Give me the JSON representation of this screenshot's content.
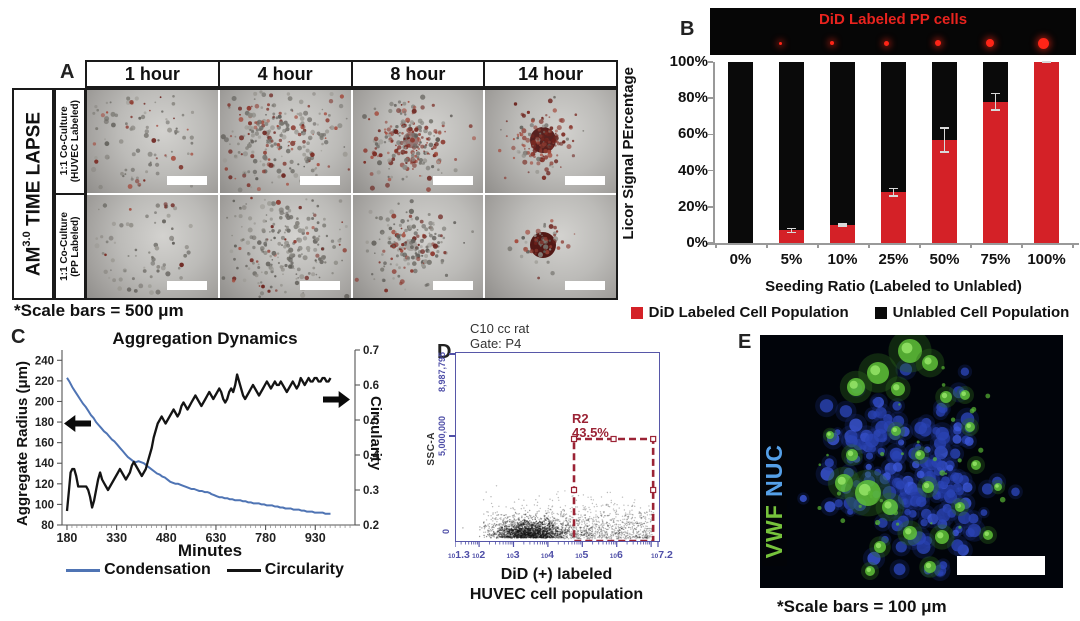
{
  "panel_a": {
    "label": "A",
    "group_label_prefix": "AM",
    "group_label_sup": "3.0",
    "group_label_suffix": " TIME LAPSE",
    "columns": [
      "1 hour",
      "4 hour",
      "8 hour",
      "14 hour"
    ],
    "rows": [
      {
        "line1": "1:1 Co-Culture",
        "line2": "(HUVEC Labeled)"
      },
      {
        "line1": "1:1 Co-Culture",
        "line2": "(PP Labeled)"
      }
    ],
    "scale_note": "*Scale bars = 500 μm"
  },
  "panel_b": {
    "label": "B",
    "strip_title": "DiD Labeled PP cells",
    "chart_data": {
      "type": "stacked-bar",
      "categories": [
        "0%",
        "5%",
        "10%",
        "25%",
        "50%",
        "75%",
        "100%"
      ],
      "series": [
        {
          "name": "DiD Labeled Cell Population",
          "color": "#d42127",
          "values": [
            0,
            7,
            10,
            28,
            57,
            78,
            100
          ]
        },
        {
          "name": "Unlabled Cell Population",
          "color": "#0a0a0a",
          "values": [
            100,
            93,
            90,
            72,
            43,
            22,
            0
          ]
        }
      ],
      "error_bars": [
        0,
        1.5,
        1,
        2.5,
        7,
        5,
        0.8
      ],
      "ylabel": "Licor Signal PErcentage",
      "xlabel": "Seeding Ratio (Labeled to Unlabled)",
      "yticks": [
        "0%",
        "20%",
        "40%",
        "60%",
        "80%",
        "100%"
      ],
      "ylim": [
        0,
        100
      ],
      "legend_position": "bottom"
    }
  },
  "panel_c": {
    "label": "C",
    "chart_data": {
      "type": "line",
      "title": "Aggregation Dynamics",
      "xlabel": "Minutes",
      "ylabel_left": "Aggregate Radius (μm)",
      "ylabel_right": "Circularity",
      "xticks": [
        180,
        330,
        480,
        630,
        780,
        930
      ],
      "xlim": [
        165,
        1050
      ],
      "yticks_left": [
        80,
        100,
        120,
        140,
        160,
        180,
        200,
        220,
        240
      ],
      "ylim_left": [
        80,
        250
      ],
      "yticks_right": [
        0.2,
        0.3,
        0.4,
        0.5,
        0.6,
        0.7
      ],
      "ylim_right": [
        0.2,
        0.7
      ],
      "series": [
        {
          "name": "Condensation",
          "color": "#4f74b4",
          "axis": "left",
          "points": [
            [
              180,
              223
            ],
            [
              188,
              219
            ],
            [
              196,
              214
            ],
            [
              204,
              210
            ],
            [
              212,
              206
            ],
            [
              220,
              202
            ],
            [
              228,
              198
            ],
            [
              236,
              195
            ],
            [
              244,
              191
            ],
            [
              252,
              187
            ],
            [
              260,
              184
            ],
            [
              268,
              180
            ],
            [
              276,
              177
            ],
            [
              284,
              174
            ],
            [
              292,
              171
            ],
            [
              300,
              169
            ],
            [
              308,
              166
            ],
            [
              316,
              163
            ],
            [
              324,
              161
            ],
            [
              332,
              158
            ],
            [
              340,
              155
            ],
            [
              348,
              152
            ],
            [
              356,
              149
            ],
            [
              364,
              146
            ],
            [
              372,
              144
            ],
            [
              380,
              142
            ],
            [
              388,
              141
            ],
            [
              396,
              142
            ],
            [
              404,
              141
            ],
            [
              412,
              140
            ],
            [
              420,
              138
            ],
            [
              428,
              136
            ],
            [
              436,
              134
            ],
            [
              444,
              132
            ],
            [
              452,
              130
            ],
            [
              460,
              129
            ],
            [
              468,
              127
            ],
            [
              476,
              126
            ],
            [
              484,
              124
            ],
            [
              492,
              122
            ],
            [
              500,
              121
            ],
            [
              508,
              120
            ],
            [
              516,
              120
            ],
            [
              524,
              119
            ],
            [
              532,
              118
            ],
            [
              540,
              117
            ],
            [
              548,
              116
            ],
            [
              556,
              115
            ],
            [
              564,
              115
            ],
            [
              572,
              114
            ],
            [
              580,
              113
            ],
            [
              588,
              113
            ],
            [
              596,
              112
            ],
            [
              604,
              112
            ],
            [
              612,
              111
            ],
            [
              616,
              110
            ],
            [
              624,
              109
            ],
            [
              632,
              108
            ],
            [
              640,
              107
            ],
            [
              648,
              107
            ],
            [
              656,
              106
            ],
            [
              664,
              106
            ],
            [
              672,
              105
            ],
            [
              680,
              105
            ],
            [
              688,
              104
            ],
            [
              696,
              104
            ],
            [
              704,
              104
            ],
            [
              712,
              103
            ],
            [
              720,
              103
            ],
            [
              728,
              102
            ],
            [
              736,
              102
            ],
            [
              744,
              101
            ],
            [
              752,
              101
            ],
            [
              760,
              101
            ],
            [
              768,
              100
            ],
            [
              776,
              100
            ],
            [
              784,
              99
            ],
            [
              792,
              99
            ],
            [
              800,
              99
            ],
            [
              808,
              98
            ],
            [
              816,
              98
            ],
            [
              824,
              97
            ],
            [
              832,
              97
            ],
            [
              840,
              96
            ],
            [
              848,
              96
            ],
            [
              856,
              96
            ],
            [
              864,
              95
            ],
            [
              872,
              95
            ],
            [
              880,
              95
            ],
            [
              888,
              94
            ],
            [
              896,
              94
            ],
            [
              904,
              93
            ],
            [
              912,
              93
            ],
            [
              920,
              93
            ],
            [
              928,
              92
            ],
            [
              936,
              92
            ],
            [
              944,
              92
            ],
            [
              952,
              92
            ],
            [
              960,
              91
            ],
            [
              968,
              91
            ],
            [
              976,
              91
            ]
          ]
        },
        {
          "name": "Circularity",
          "color": "#141414",
          "axis": "right",
          "points": [
            [
              180,
              0.24
            ],
            [
              186,
              0.3
            ],
            [
              191,
              0.35
            ],
            [
              196,
              0.36
            ],
            [
              202,
              0.36
            ],
            [
              208,
              0.34
            ],
            [
              214,
              0.31
            ],
            [
              220,
              0.31
            ],
            [
              226,
              0.31
            ],
            [
              232,
              0.31
            ],
            [
              238,
              0.31
            ],
            [
              244,
              0.3
            ],
            [
              250,
              0.28
            ],
            [
              256,
              0.25
            ],
            [
              262,
              0.27
            ],
            [
              268,
              0.3
            ],
            [
              274,
              0.33
            ],
            [
              280,
              0.35
            ],
            [
              286,
              0.33
            ],
            [
              292,
              0.32
            ],
            [
              298,
              0.31
            ],
            [
              304,
              0.3
            ],
            [
              310,
              0.31
            ],
            [
              316,
              0.32
            ],
            [
              322,
              0.33
            ],
            [
              328,
              0.34
            ],
            [
              334,
              0.35
            ],
            [
              340,
              0.36
            ],
            [
              346,
              0.35
            ],
            [
              352,
              0.34
            ],
            [
              358,
              0.33
            ],
            [
              364,
              0.34
            ],
            [
              370,
              0.35
            ],
            [
              376,
              0.37
            ],
            [
              382,
              0.38
            ],
            [
              388,
              0.37
            ],
            [
              394,
              0.36
            ],
            [
              400,
              0.35
            ],
            [
              406,
              0.34
            ],
            [
              412,
              0.35
            ],
            [
              418,
              0.36
            ],
            [
              424,
              0.38
            ],
            [
              430,
              0.4
            ],
            [
              436,
              0.42
            ],
            [
              442,
              0.45
            ],
            [
              448,
              0.47
            ],
            [
              454,
              0.49
            ],
            [
              460,
              0.5
            ],
            [
              466,
              0.51
            ],
            [
              472,
              0.5
            ],
            [
              478,
              0.49
            ],
            [
              484,
              0.5
            ],
            [
              490,
              0.51
            ],
            [
              496,
              0.52
            ],
            [
              502,
              0.53
            ],
            [
              508,
              0.52
            ],
            [
              514,
              0.51
            ],
            [
              520,
              0.52
            ],
            [
              526,
              0.54
            ],
            [
              532,
              0.55
            ],
            [
              538,
              0.54
            ],
            [
              544,
              0.53
            ],
            [
              550,
              0.54
            ],
            [
              556,
              0.55
            ],
            [
              562,
              0.56
            ],
            [
              568,
              0.57
            ],
            [
              574,
              0.56
            ],
            [
              580,
              0.55
            ],
            [
              586,
              0.54
            ],
            [
              592,
              0.55
            ],
            [
              598,
              0.56
            ],
            [
              604,
              0.57
            ],
            [
              610,
              0.58
            ],
            [
              616,
              0.57
            ],
            [
              622,
              0.56
            ],
            [
              628,
              0.57
            ],
            [
              634,
              0.58
            ],
            [
              640,
              0.59
            ],
            [
              646,
              0.58
            ],
            [
              652,
              0.56
            ],
            [
              658,
              0.55
            ],
            [
              664,
              0.56
            ],
            [
              670,
              0.58
            ],
            [
              676,
              0.59
            ],
            [
              682,
              0.58
            ],
            [
              688,
              0.6
            ],
            [
              694,
              0.63
            ],
            [
              700,
              0.61
            ],
            [
              706,
              0.59
            ],
            [
              712,
              0.57
            ],
            [
              718,
              0.56
            ],
            [
              724,
              0.57
            ],
            [
              730,
              0.58
            ],
            [
              736,
              0.59
            ],
            [
              742,
              0.6
            ],
            [
              748,
              0.59
            ],
            [
              754,
              0.58
            ],
            [
              760,
              0.57
            ],
            [
              766,
              0.58
            ],
            [
              772,
              0.59
            ],
            [
              778,
              0.6
            ],
            [
              784,
              0.61
            ],
            [
              790,
              0.6
            ],
            [
              796,
              0.59
            ],
            [
              802,
              0.6
            ],
            [
              808,
              0.61
            ],
            [
              814,
              0.6
            ],
            [
              820,
              0.6
            ],
            [
              826,
              0.61
            ],
            [
              832,
              0.6
            ],
            [
              838,
              0.59
            ],
            [
              844,
              0.58
            ],
            [
              850,
              0.59
            ],
            [
              856,
              0.6
            ],
            [
              862,
              0.61
            ],
            [
              868,
              0.6
            ],
            [
              874,
              0.59
            ],
            [
              880,
              0.6
            ],
            [
              886,
              0.62
            ],
            [
              892,
              0.61
            ],
            [
              898,
              0.6
            ],
            [
              904,
              0.61
            ],
            [
              910,
              0.62
            ],
            [
              916,
              0.61
            ],
            [
              922,
              0.61
            ],
            [
              928,
              0.62
            ],
            [
              934,
              0.62
            ],
            [
              940,
              0.61
            ],
            [
              946,
              0.61
            ],
            [
              952,
              0.62
            ],
            [
              958,
              0.62
            ],
            [
              964,
              0.61
            ],
            [
              970,
              0.61
            ],
            [
              976,
              0.62
            ]
          ]
        }
      ]
    }
  },
  "panel_d": {
    "label": "D",
    "header_line1": "C10 cc rat",
    "header_line2": "Gate: P4",
    "y_axis_label": "SSC-A",
    "y_tick_top": "8,987,795",
    "y_tick_mid": "5,000,000",
    "y_tick_bottom": "0",
    "x_tick_base": "10",
    "x_ticks": [
      "1.3",
      "2",
      "3",
      "4",
      "5",
      "6",
      "7.2"
    ],
    "gate_name": "R2",
    "gate_percent": "43.5%",
    "caption_line1": "DiD (+) labeled",
    "caption_line2": "HUVEC cell population"
  },
  "panel_e": {
    "label": "E",
    "stain1": "VWF",
    "stain2": "NUC",
    "stain1_color": "#76c33c",
    "stain2_color": "#55a0e8",
    "scale_note": "*Scale bars = 100 μm"
  },
  "colors": {
    "bar_red": "#d42127",
    "bar_black": "#0a0a0a",
    "strip_title_red": "#e8231e",
    "condensation_blue": "#4f74b4",
    "flow_frame_purple": "#5757a8",
    "gate_red": "#9b2335"
  }
}
